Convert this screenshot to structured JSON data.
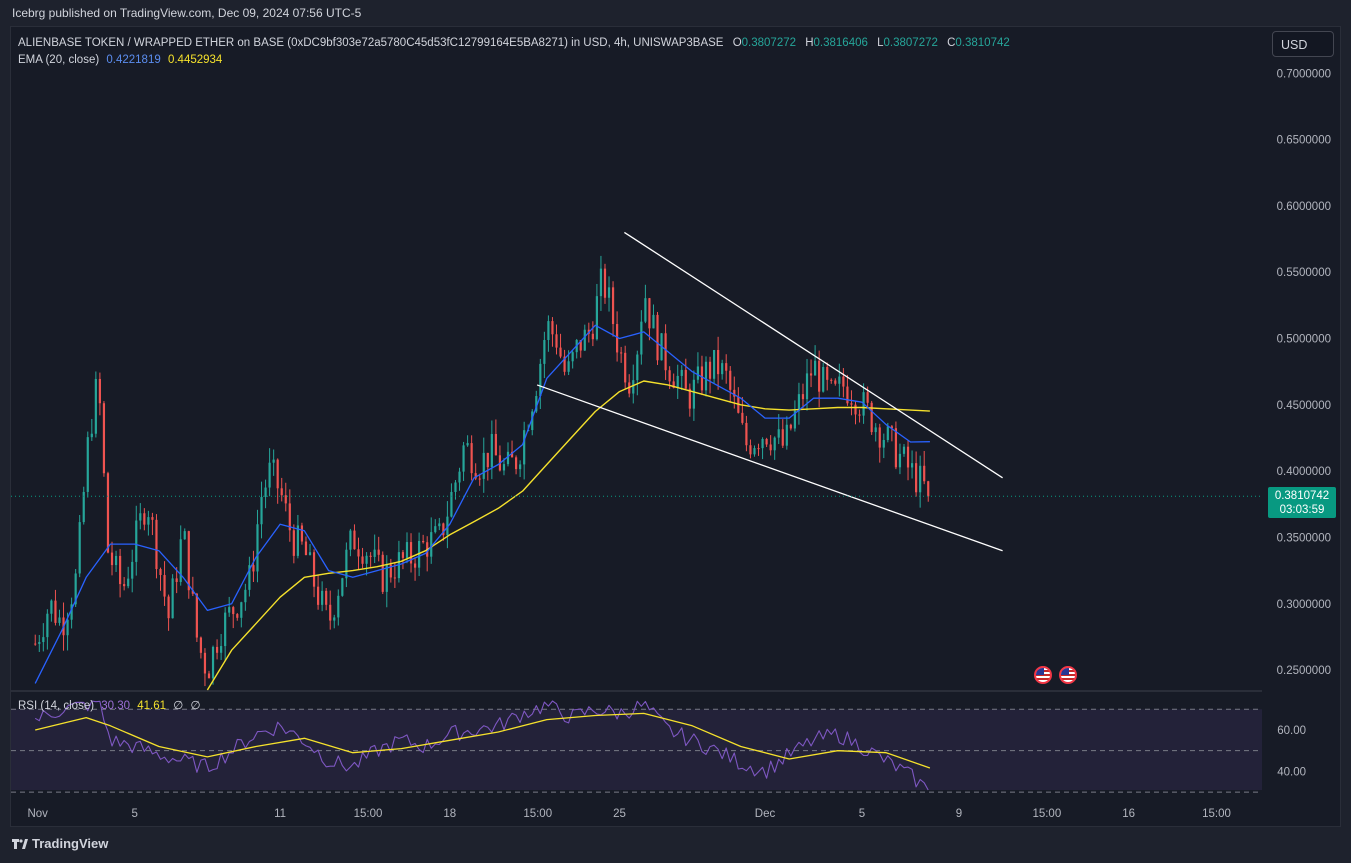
{
  "caption": "Icebrg published on TradingView.com, Dec 09, 2024 07:56 UTC-5",
  "legend": {
    "symbol": "ALIENBASE TOKEN / WRAPPED ETHER on BASE (0xDC9bf303e72a5780C45d53fC12799164E5BA8271) in USD, 4h, UNISWAP3BASE",
    "o_label": "O",
    "o_value": "0.3807272",
    "h_label": "H",
    "h_value": "0.3816406",
    "l_label": "L",
    "l_value": "0.3807272",
    "c_label": "C",
    "c_value": "0.3810742",
    "ema_label": "EMA (20, close)",
    "ema_fast_value": "0.4221819",
    "ema_slow_value": "0.4452934"
  },
  "rsi_legend": {
    "label": "RSI (14, close)",
    "rsi_value": "30.30",
    "ma_value": "41.61",
    "extra1": "∅",
    "extra2": "∅"
  },
  "currency_button": "USD",
  "last_price": {
    "price": "0.3810742",
    "countdown": "03:03:59"
  },
  "brand": "TradingView",
  "colors": {
    "up": "#26a69a",
    "down": "#ef5350",
    "ema_fast": "#2962ff",
    "ema_slow": "#f5e12c",
    "rsi": "#7e57c2",
    "rsi_ma": "#f5e12c",
    "trendline": "#ffffff",
    "price_tag": "#089981"
  },
  "icons": [
    "us-flag-icon",
    "us-flag-icon",
    "tradingview-logo-icon"
  ],
  "chart_data": {
    "type": "candlestick",
    "price_axis": {
      "ticks": [
        "0.7000000",
        "0.6500000",
        "0.6000000",
        "0.5500000",
        "0.5000000",
        "0.4500000",
        "0.4000000",
        "0.3500000",
        "0.3000000",
        "0.2500000"
      ],
      "tick_values": [
        0.7,
        0.65,
        0.6,
        0.55,
        0.5,
        0.45,
        0.4,
        0.35,
        0.3,
        0.25
      ],
      "range": [
        0.235,
        0.71
      ]
    },
    "time_axis": {
      "labels": [
        "Nov",
        "5",
        "11",
        "15:00",
        "18",
        "15:00",
        "25",
        "Dec",
        "5",
        "9",
        "15:00",
        "16",
        "15:00"
      ],
      "label_days": [
        0,
        4,
        10,
        13.625,
        17,
        20.625,
        24,
        30,
        34,
        38,
        41.625,
        45,
        48.625
      ],
      "range_days": [
        -1.1,
        50.5
      ]
    },
    "price_path": [
      [
        -0.1,
        0.27
      ],
      [
        0.5,
        0.3
      ],
      [
        1.0,
        0.285
      ],
      [
        1.6,
        0.32
      ],
      [
        2.1,
        0.425
      ],
      [
        2.5,
        0.47
      ],
      [
        2.9,
        0.34
      ],
      [
        3.5,
        0.31
      ],
      [
        4.0,
        0.345
      ],
      [
        4.5,
        0.38
      ],
      [
        5.0,
        0.33
      ],
      [
        5.4,
        0.29
      ],
      [
        6.0,
        0.355
      ],
      [
        6.6,
        0.27
      ],
      [
        7.0,
        0.25
      ],
      [
        7.5,
        0.28
      ],
      [
        8.2,
        0.3
      ],
      [
        8.8,
        0.32
      ],
      [
        9.2,
        0.38
      ],
      [
        9.6,
        0.4
      ],
      [
        10.0,
        0.385
      ],
      [
        10.5,
        0.35
      ],
      [
        11.0,
        0.34
      ],
      [
        11.5,
        0.31
      ],
      [
        12.0,
        0.285
      ],
      [
        12.5,
        0.32
      ],
      [
        13.0,
        0.35
      ],
      [
        13.6,
        0.34
      ],
      [
        14.2,
        0.32
      ],
      [
        14.8,
        0.33
      ],
      [
        15.4,
        0.335
      ],
      [
        16.0,
        0.345
      ],
      [
        16.6,
        0.35
      ],
      [
        17.2,
        0.39
      ],
      [
        17.6,
        0.42
      ],
      [
        18.2,
        0.405
      ],
      [
        18.7,
        0.415
      ],
      [
        19.3,
        0.4
      ],
      [
        19.8,
        0.41
      ],
      [
        20.2,
        0.44
      ],
      [
        20.6,
        0.47
      ],
      [
        21.0,
        0.51
      ],
      [
        21.4,
        0.5
      ],
      [
        21.8,
        0.47
      ],
      [
        22.3,
        0.495
      ],
      [
        22.8,
        0.505
      ],
      [
        23.3,
        0.545
      ],
      [
        23.6,
        0.525
      ],
      [
        24.0,
        0.49
      ],
      [
        24.4,
        0.47
      ],
      [
        24.8,
        0.5
      ],
      [
        25.0,
        0.54
      ],
      [
        25.2,
        0.52
      ],
      [
        25.6,
        0.495
      ],
      [
        26.0,
        0.48
      ],
      [
        26.4,
        0.47
      ],
      [
        26.8,
        0.455
      ],
      [
        27.2,
        0.465
      ],
      [
        27.6,
        0.475
      ],
      [
        28.0,
        0.48
      ],
      [
        28.4,
        0.47
      ],
      [
        28.8,
        0.445
      ],
      [
        29.2,
        0.42
      ],
      [
        29.6,
        0.425
      ],
      [
        30.0,
        0.43
      ],
      [
        30.4,
        0.425
      ],
      [
        30.8,
        0.418
      ],
      [
        31.2,
        0.44
      ],
      [
        31.6,
        0.46
      ],
      [
        32.0,
        0.48
      ],
      [
        32.4,
        0.465
      ],
      [
        32.8,
        0.455
      ],
      [
        33.2,
        0.465
      ],
      [
        33.6,
        0.46
      ],
      [
        34.0,
        0.45
      ],
      [
        34.4,
        0.44
      ],
      [
        34.8,
        0.43
      ],
      [
        35.2,
        0.42
      ],
      [
        35.6,
        0.41
      ],
      [
        36.0,
        0.4
      ],
      [
        36.4,
        0.392
      ],
      [
        36.8,
        0.3810742
      ]
    ],
    "ema_fast_path": [
      [
        -0.1,
        0.24
      ],
      [
        1.0,
        0.28
      ],
      [
        2.0,
        0.32
      ],
      [
        3.0,
        0.345
      ],
      [
        4.0,
        0.345
      ],
      [
        5.0,
        0.34
      ],
      [
        6.0,
        0.32
      ],
      [
        7.0,
        0.295
      ],
      [
        8.0,
        0.3
      ],
      [
        9.0,
        0.335
      ],
      [
        10.0,
        0.36
      ],
      [
        11.0,
        0.355
      ],
      [
        12.0,
        0.325
      ],
      [
        13.0,
        0.32
      ],
      [
        14.0,
        0.325
      ],
      [
        15.0,
        0.33
      ],
      [
        16.0,
        0.338
      ],
      [
        17.0,
        0.36
      ],
      [
        18.0,
        0.395
      ],
      [
        19.0,
        0.405
      ],
      [
        20.0,
        0.42
      ],
      [
        21.0,
        0.47
      ],
      [
        22.0,
        0.49
      ],
      [
        23.0,
        0.51
      ],
      [
        24.0,
        0.5
      ],
      [
        25.0,
        0.505
      ],
      [
        26.0,
        0.49
      ],
      [
        27.0,
        0.475
      ],
      [
        28.0,
        0.465
      ],
      [
        29.0,
        0.455
      ],
      [
        30.0,
        0.44
      ],
      [
        31.0,
        0.44
      ],
      [
        32.0,
        0.455
      ],
      [
        33.0,
        0.455
      ],
      [
        34.0,
        0.452
      ],
      [
        35.0,
        0.435
      ],
      [
        36.0,
        0.422
      ],
      [
        36.8,
        0.4221819
      ]
    ],
    "ema_slow_path": [
      [
        7.0,
        0.235
      ],
      [
        8.0,
        0.265
      ],
      [
        9.0,
        0.285
      ],
      [
        10.0,
        0.305
      ],
      [
        11.0,
        0.32
      ],
      [
        12.0,
        0.323
      ],
      [
        13.0,
        0.325
      ],
      [
        14.0,
        0.328
      ],
      [
        15.0,
        0.332
      ],
      [
        16.0,
        0.34
      ],
      [
        17.0,
        0.352
      ],
      [
        18.0,
        0.362
      ],
      [
        19.0,
        0.372
      ],
      [
        20.0,
        0.385
      ],
      [
        21.0,
        0.405
      ],
      [
        22.0,
        0.425
      ],
      [
        23.0,
        0.445
      ],
      [
        24.0,
        0.46
      ],
      [
        25.0,
        0.468
      ],
      [
        26.0,
        0.465
      ],
      [
        27.0,
        0.46
      ],
      [
        28.0,
        0.455
      ],
      [
        29.0,
        0.45
      ],
      [
        30.0,
        0.447
      ],
      [
        31.0,
        0.446
      ],
      [
        32.0,
        0.447
      ],
      [
        33.0,
        0.448
      ],
      [
        34.0,
        0.448
      ],
      [
        35.0,
        0.447
      ],
      [
        36.0,
        0.446
      ],
      [
        36.8,
        0.4452934
      ]
    ],
    "trendlines": [
      {
        "name": "upper",
        "points": [
          [
            24.2,
            0.58
          ],
          [
            39.8,
            0.395
          ]
        ]
      },
      {
        "name": "lower",
        "points": [
          [
            20.6,
            0.465
          ],
          [
            39.8,
            0.34
          ]
        ]
      }
    ],
    "rsi": {
      "levels_labels": [
        "60.00",
        "40.00"
      ],
      "levels": [
        60,
        40
      ],
      "range": [
        31,
        74
      ],
      "rsi_path": [
        [
          -0.1,
          65
        ],
        [
          1.0,
          70
        ],
        [
          2.0,
          72
        ],
        [
          2.5,
          74
        ],
        [
          3.0,
          55
        ],
        [
          4.0,
          52
        ],
        [
          5.0,
          48
        ],
        [
          6.0,
          45
        ],
        [
          7.0,
          42
        ],
        [
          8.0,
          50
        ],
        [
          9.0,
          58
        ],
        [
          10.0,
          62
        ],
        [
          11.0,
          55
        ],
        [
          12.0,
          45
        ],
        [
          13.0,
          42
        ],
        [
          14.0,
          50
        ],
        [
          15.0,
          55
        ],
        [
          16.0,
          52
        ],
        [
          17.0,
          58
        ],
        [
          18.0,
          60
        ],
        [
          19.0,
          62
        ],
        [
          20.0,
          68
        ],
        [
          21.0,
          72
        ],
        [
          22.0,
          66
        ],
        [
          23.0,
          70
        ],
        [
          24.0,
          68
        ],
        [
          25.0,
          72
        ],
        [
          26.0,
          60
        ],
        [
          27.0,
          55
        ],
        [
          28.0,
          50
        ],
        [
          29.0,
          44
        ],
        [
          30.0,
          40
        ],
        [
          31.0,
          48
        ],
        [
          32.0,
          55
        ],
        [
          33.0,
          58
        ],
        [
          34.0,
          52
        ],
        [
          35.0,
          45
        ],
        [
          36.0,
          38
        ],
        [
          36.8,
          30.3
        ]
      ],
      "ma_path": [
        [
          -0.1,
          60
        ],
        [
          2.0,
          66
        ],
        [
          3.0,
          62
        ],
        [
          5.0,
          52
        ],
        [
          7.0,
          47
        ],
        [
          9.0,
          52
        ],
        [
          11.0,
          56
        ],
        [
          13.0,
          49
        ],
        [
          15.0,
          51
        ],
        [
          17.0,
          55
        ],
        [
          19.0,
          59
        ],
        [
          21.0,
          65
        ],
        [
          23.0,
          67
        ],
        [
          25.0,
          68
        ],
        [
          27.0,
          62
        ],
        [
          29.0,
          52
        ],
        [
          31.0,
          46
        ],
        [
          33.0,
          50
        ],
        [
          35.0,
          49
        ],
        [
          36.8,
          41.61
        ]
      ]
    }
  }
}
